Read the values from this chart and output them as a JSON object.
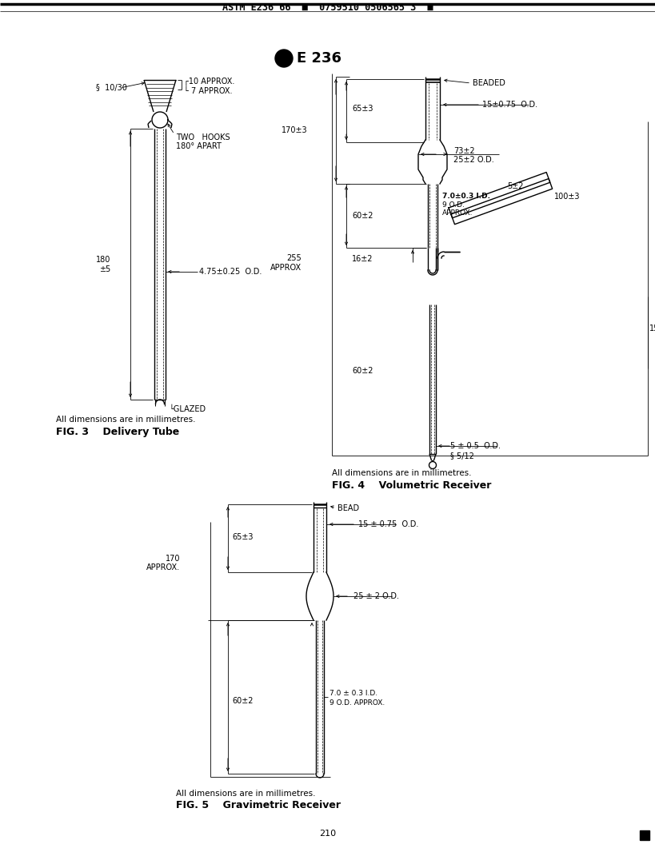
{
  "page_bg": "#ffffff",
  "header_text": "ASTM E236 66  ■  0759510 0506565 3  ■",
  "fig3_title": "FIG. 3    Delivery Tube",
  "fig3_note": "All dimensions are in millimetres.",
  "fig4_title": "FIG. 4    Volumetric Receiver",
  "fig4_note": "All dimensions are in millimetres.",
  "fig5_title": "FIG. 5    Gravimetric Receiver",
  "fig5_note": "All dimensions are in millimetres.",
  "page_number": "210",
  "lw": 1.0
}
